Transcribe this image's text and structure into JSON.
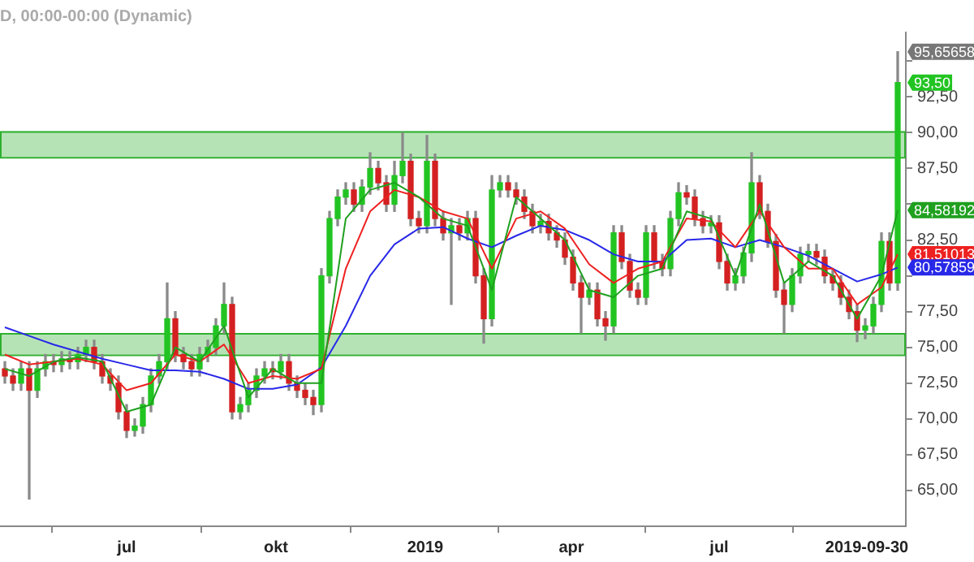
{
  "chart_data": {
    "type": "candlestick",
    "title": "D, 00:00-00:00 (Dynamic)",
    "colors": [
      "#d42020",
      "#d42020",
      "#22c422",
      "#d42020",
      "#22c422",
      "#22c422",
      "#d42020",
      "#22c422",
      "#d42020",
      "#22c422",
      "#22c422",
      "#d42020",
      "#d42020",
      "#d42020",
      "#d42020",
      "#d42020",
      "#22c422",
      "#22c422",
      "#22c422",
      "#22c422",
      "#22c422",
      "#d42020",
      "#d42020",
      "#d42020",
      "#22c422",
      "#22c422",
      "#22c422",
      "#22c422",
      "#d42020",
      "#22c422",
      "#22c422",
      "#22c422",
      "#22c422",
      "#d42020",
      "#22c422",
      "#d42020",
      "#d42020",
      "#d42020",
      "#d42020",
      "#22c422",
      "#22c422",
      "#22c422",
      "#22c422",
      "#d42020",
      "#22c422",
      "#22c422",
      "#d42020",
      "#d42020",
      "#22c422",
      "#22c422",
      "#d42020",
      "#d42020",
      "#22c422",
      "#d42020",
      "#d42020",
      "#22c422",
      "#d42020",
      "#22c422",
      "#d42020",
      "#d42020",
      "#22c422",
      "#22c422",
      "#d42020",
      "#d42020",
      "#d42020",
      "#d42020",
      "#22c422",
      "#d42020",
      "#d42020",
      "#d42020",
      "#d42020",
      "#d42020",
      "#22c422",
      "#d42020",
      "#d42020",
      "#22c422",
      "#d42020",
      "#d42020",
      "#d42020",
      "#22c422",
      "#d42020",
      "#d42020",
      "#22c422",
      "#22c422",
      "#d42020",
      "#d42020",
      "#d42020",
      "#22c422",
      "#d42020",
      "#d42020",
      "#22c422",
      "#22c422",
      "#22c422",
      "#d42020",
      "#d42020",
      "#d42020",
      "#d42020",
      "#22c422",
      "#22c422",
      "#22c422",
      "#d42020",
      "#d42020",
      "#d42020",
      "#d42020",
      "#d42020",
      "#d42020",
      "#22c422",
      "#22c422",
      "#22c422",
      "#d42020",
      "#22c422"
    ],
    "x": [
      "2018-04-17",
      "2018-04-22",
      "2018-04-27",
      "2018-05-02",
      "2018-05-07",
      "2018-05-12",
      "2018-05-17",
      "2018-05-22",
      "2018-05-27",
      "2018-06-01",
      "2018-06-06",
      "2018-06-11",
      "2018-06-16",
      "2018-06-21",
      "2018-06-26",
      "2018-07-01",
      "2018-07-06",
      "2018-07-11",
      "2018-07-16",
      "2018-07-21",
      "2018-07-26",
      "2018-07-31",
      "2018-08-05",
      "2018-08-10",
      "2018-08-15",
      "2018-08-20",
      "2018-08-25",
      "2018-08-30",
      "2018-09-04",
      "2018-09-09",
      "2018-09-14",
      "2018-09-19",
      "2018-09-24",
      "2018-09-29",
      "2018-10-04",
      "2018-10-09",
      "2018-10-14",
      "2018-10-19",
      "2018-10-24",
      "2018-10-29",
      "2018-11-03",
      "2018-11-08",
      "2018-11-13",
      "2018-11-18",
      "2018-11-23",
      "2018-11-28",
      "2018-12-03",
      "2018-12-08",
      "2018-12-13",
      "2018-12-18",
      "2018-12-23",
      "2018-12-28",
      "2019-01-02",
      "2019-01-07",
      "2019-01-12",
      "2019-01-17",
      "2019-01-22",
      "2019-01-27",
      "2019-02-01",
      "2019-02-06",
      "2019-02-11",
      "2019-02-16",
      "2019-02-21",
      "2019-02-26",
      "2019-03-03",
      "2019-03-08",
      "2019-03-13",
      "2019-03-18",
      "2019-03-23",
      "2019-03-28",
      "2019-04-02",
      "2019-04-07",
      "2019-04-12",
      "2019-04-17",
      "2019-04-22",
      "2019-04-27",
      "2019-05-02",
      "2019-05-07",
      "2019-05-12",
      "2019-05-17",
      "2019-05-22",
      "2019-05-27",
      "2019-06-01",
      "2019-06-06",
      "2019-06-11",
      "2019-06-16",
      "2019-06-21",
      "2019-06-26",
      "2019-07-01",
      "2019-07-06",
      "2019-07-11",
      "2019-07-16",
      "2019-07-21",
      "2019-07-26",
      "2019-07-31",
      "2019-08-05",
      "2019-08-10",
      "2019-08-15",
      "2019-08-20",
      "2019-08-25",
      "2019-08-30",
      "2019-09-04",
      "2019-09-09",
      "2019-09-14",
      "2019-09-19",
      "2019-09-24",
      "2019-09-29",
      "2019-10-04",
      "2019-10-09",
      "2019-10-14",
      "2019-10-19"
    ],
    "ohlc": [
      [
        73.5,
        74,
        72.5,
        73
      ],
      [
        73,
        73.5,
        72,
        72.5
      ],
      [
        72.5,
        74,
        72,
        73.5
      ],
      [
        73.5,
        74,
        64.4,
        72
      ],
      [
        72,
        74,
        71.5,
        73.5
      ],
      [
        73.5,
        74.5,
        73,
        74
      ],
      [
        74,
        74.5,
        73.3,
        73.8
      ],
      [
        73.8,
        74.7,
        73.3,
        74.2
      ],
      [
        74.2,
        74.7,
        73.5,
        74
      ],
      [
        74,
        75,
        73.5,
        74.5
      ],
      [
        74.5,
        75.5,
        74,
        75
      ],
      [
        75,
        75.5,
        73.5,
        74
      ],
      [
        74,
        74.5,
        72.5,
        73
      ],
      [
        73,
        73.5,
        72,
        72.5
      ],
      [
        72.5,
        73,
        70,
        70.5
      ],
      [
        70.5,
        71,
        68.7,
        69.2
      ],
      [
        69.2,
        70,
        68.8,
        69.5
      ],
      [
        69.5,
        71.5,
        69,
        71
      ],
      [
        71,
        73.5,
        70.5,
        73
      ],
      [
        73,
        74.5,
        72.5,
        74
      ],
      [
        74,
        79.5,
        73.5,
        77
      ],
      [
        77,
        77.5,
        74,
        74.5
      ],
      [
        74.5,
        75,
        73.5,
        74
      ],
      [
        74,
        74.5,
        73,
        73.5
      ],
      [
        73.5,
        75,
        73,
        74.5
      ],
      [
        74.5,
        75.5,
        74,
        75
      ],
      [
        75,
        77,
        74.5,
        76.5
      ],
      [
        76.5,
        79.5,
        76,
        78
      ],
      [
        78,
        78.5,
        70,
        70.5
      ],
      [
        70.5,
        71.5,
        70,
        71
      ],
      [
        71,
        72.5,
        70.5,
        72
      ],
      [
        72,
        73.5,
        71.5,
        73
      ],
      [
        73,
        74,
        72.5,
        73.5
      ],
      [
        73.5,
        74,
        72.8,
        73.3
      ],
      [
        73.3,
        74.5,
        72.8,
        74
      ],
      [
        74,
        74.5,
        72,
        72.5
      ],
      [
        72.5,
        73,
        71.5,
        72
      ],
      [
        72,
        72.5,
        71,
        71.5
      ],
      [
        71.5,
        72,
        70.3,
        71
      ],
      [
        71,
        80.5,
        70.5,
        80
      ],
      [
        80,
        84.5,
        79.5,
        84
      ],
      [
        84,
        86,
        83.5,
        85.5
      ],
      [
        85.5,
        86.5,
        85,
        86
      ],
      [
        86,
        86.5,
        84.5,
        85
      ],
      [
        85,
        86.7,
        84.5,
        86.2
      ],
      [
        86.2,
        88.6,
        85.7,
        87.5
      ],
      [
        87.5,
        88,
        86,
        86.5
      ],
      [
        86.5,
        87,
        84.5,
        85
      ],
      [
        85,
        88,
        84.5,
        87
      ],
      [
        87,
        90,
        86.5,
        88
      ],
      [
        88,
        88.5,
        83.5,
        84
      ],
      [
        84,
        84.5,
        83,
        83.5
      ],
      [
        83.5,
        89.8,
        83,
        88
      ],
      [
        88,
        88.5,
        83.5,
        84
      ],
      [
        84,
        84.5,
        82.5,
        83
      ],
      [
        83,
        84,
        78,
        83.5
      ],
      [
        83.5,
        84,
        82.5,
        83
      ],
      [
        83,
        84.5,
        82.5,
        84
      ],
      [
        84,
        84.5,
        79.5,
        80
      ],
      [
        80,
        80.5,
        75.3,
        77
      ],
      [
        77,
        87,
        76.5,
        86
      ],
      [
        86,
        87,
        85.5,
        86.5
      ],
      [
        86.5,
        87,
        85.5,
        86
      ],
      [
        86,
        86.5,
        85,
        85.5
      ],
      [
        85.5,
        86,
        84,
        84.5
      ],
      [
        84.5,
        85,
        83,
        83.5
      ],
      [
        83.5,
        84.3,
        83,
        83.8
      ],
      [
        83.8,
        84.3,
        82.5,
        83
      ],
      [
        83,
        83.5,
        82,
        82.5
      ],
      [
        82.5,
        83,
        80.8,
        81.3
      ],
      [
        81.3,
        81.8,
        79,
        79.5
      ],
      [
        79.5,
        80,
        76,
        78.5
      ],
      [
        78.5,
        79.5,
        78,
        79
      ],
      [
        79,
        79.5,
        76.5,
        77
      ],
      [
        77,
        77.5,
        75.5,
        76.5
      ],
      [
        76.5,
        83.5,
        76,
        83
      ],
      [
        83,
        83.5,
        80.5,
        81
      ],
      [
        81,
        81.5,
        78.5,
        79
      ],
      [
        79,
        79.5,
        78,
        78.5
      ],
      [
        78.5,
        83.5,
        78,
        83
      ],
      [
        83,
        83.5,
        80.5,
        81
      ],
      [
        81,
        81.5,
        80,
        80.5
      ],
      [
        80.5,
        84.5,
        80,
        84
      ],
      [
        84,
        86.5,
        83.5,
        85.8
      ],
      [
        85.8,
        86.3,
        85,
        85.5
      ],
      [
        85.5,
        86,
        83.5,
        84
      ],
      [
        84,
        84.5,
        83,
        83.5
      ],
      [
        83.5,
        84.2,
        83,
        83.7
      ],
      [
        83.7,
        84.2,
        80.5,
        81
      ],
      [
        81,
        81.5,
        79,
        79.5
      ],
      [
        79.5,
        80.5,
        79,
        80
      ],
      [
        80,
        82,
        79.5,
        81.6
      ],
      [
        81.6,
        88.6,
        81,
        86.5
      ],
      [
        86.5,
        87,
        84,
        84.5
      ],
      [
        84.5,
        85,
        82,
        82.4
      ],
      [
        82.4,
        82.9,
        78.5,
        79
      ],
      [
        79,
        79.5,
        76,
        78
      ],
      [
        78,
        80.5,
        77.5,
        80
      ],
      [
        80,
        82,
        79.5,
        81.5
      ],
      [
        81.5,
        82.2,
        81,
        81.7
      ],
      [
        81.7,
        82.2,
        80.8,
        81.3
      ],
      [
        81.3,
        81.8,
        79.5,
        80
      ],
      [
        80,
        80.5,
        79,
        79.5
      ],
      [
        79.5,
        80,
        78,
        78.5
      ],
      [
        78.5,
        79,
        77,
        77.5
      ],
      [
        77.5,
        78,
        75.4,
        76.2
      ],
      [
        76.2,
        77,
        75.6,
        76.5
      ],
      [
        76.5,
        78.5,
        76,
        78
      ],
      [
        78,
        83,
        77.5,
        82.4
      ],
      [
        82.4,
        83,
        79,
        79.5
      ],
      [
        79.5,
        95.65658,
        79,
        93.5
      ]
    ],
    "series": [
      {
        "type": "line",
        "color": "#1fa01f",
        "x": [
          "2018-04-17",
          "2018-05-02",
          "2018-05-17",
          "2018-06-01",
          "2018-06-16",
          "2018-07-01",
          "2018-07-16",
          "2018-07-31",
          "2018-08-15",
          "2018-08-30",
          "2018-09-14",
          "2018-09-29",
          "2018-10-14",
          "2018-10-29",
          "2018-11-13",
          "2018-11-28",
          "2018-12-13",
          "2018-12-28",
          "2019-01-12",
          "2019-01-27",
          "2019-02-11",
          "2019-02-26",
          "2019-03-13",
          "2019-03-28",
          "2019-04-12",
          "2019-04-27",
          "2019-05-12",
          "2019-05-27",
          "2019-06-11",
          "2019-06-26",
          "2019-07-11",
          "2019-07-26",
          "2019-08-10",
          "2019-08-25",
          "2019-09-09",
          "2019-09-24",
          "2019-10-09",
          "2019-10-19"
        ],
        "values": [
          73.5,
          73,
          74,
          74.3,
          74,
          70.5,
          71,
          75,
          74,
          76.5,
          71.5,
          73.5,
          72.5,
          72.5,
          84,
          86,
          86.5,
          85.5,
          84,
          83.5,
          79,
          85.5,
          84,
          82.5,
          79,
          78.5,
          80,
          80.5,
          84.5,
          84,
          80,
          85,
          79.5,
          81,
          80,
          77,
          80,
          84.58192
        ]
      },
      {
        "type": "line",
        "color": "#ee2020",
        "x": [
          "2018-04-17",
          "2018-05-02",
          "2018-05-17",
          "2018-06-01",
          "2018-06-16",
          "2018-07-01",
          "2018-07-16",
          "2018-07-31",
          "2018-08-15",
          "2018-08-30",
          "2018-09-14",
          "2018-09-29",
          "2018-10-14",
          "2018-10-29",
          "2018-11-13",
          "2018-11-28",
          "2018-12-13",
          "2018-12-28",
          "2019-01-12",
          "2019-01-27",
          "2019-02-11",
          "2019-02-26",
          "2019-03-13",
          "2019-03-28",
          "2019-04-12",
          "2019-04-27",
          "2019-05-12",
          "2019-05-27",
          "2019-06-11",
          "2019-06-26",
          "2019-07-11",
          "2019-07-26",
          "2019-08-10",
          "2019-08-25",
          "2019-09-09",
          "2019-09-24",
          "2019-10-09",
          "2019-10-19"
        ],
        "values": [
          74.5,
          73.8,
          74,
          74.2,
          73.8,
          72,
          72.5,
          74.5,
          74,
          75.2,
          72.5,
          73,
          72.8,
          73.5,
          80.5,
          84.5,
          86,
          85.5,
          84.5,
          84,
          80.5,
          84,
          84.5,
          83.3,
          80.8,
          79.5,
          80.5,
          81,
          84,
          83.8,
          82,
          84.5,
          82,
          80.5,
          80.5,
          78,
          79.2,
          81.51013
        ]
      },
      {
        "type": "line",
        "color": "#2828e8",
        "x": [
          "2018-04-17",
          "2018-05-02",
          "2018-05-17",
          "2018-06-01",
          "2018-06-16",
          "2018-07-01",
          "2018-07-16",
          "2018-07-31",
          "2018-08-15",
          "2018-08-30",
          "2018-09-14",
          "2018-09-29",
          "2018-10-14",
          "2018-10-29",
          "2018-11-13",
          "2018-11-28",
          "2018-12-13",
          "2018-12-28",
          "2019-01-12",
          "2019-01-27",
          "2019-02-11",
          "2019-02-26",
          "2019-03-13",
          "2019-03-28",
          "2019-04-12",
          "2019-04-27",
          "2019-05-12",
          "2019-05-27",
          "2019-06-11",
          "2019-06-26",
          "2019-07-11",
          "2019-07-26",
          "2019-08-10",
          "2019-08-25",
          "2019-09-09",
          "2019-09-24",
          "2019-10-09",
          "2019-10-19"
        ],
        "values": [
          76.4,
          75.8,
          75.2,
          74.7,
          74.2,
          73.8,
          73.4,
          73.4,
          73.3,
          72.8,
          72.1,
          72.1,
          72.4,
          73.6,
          76.5,
          80,
          82.2,
          83.3,
          83.4,
          82.6,
          82,
          82.8,
          83.5,
          83.2,
          82.5,
          81.5,
          81,
          81,
          82.5,
          82.6,
          82,
          82.5,
          82,
          81.4,
          80.5,
          79.6,
          80.1,
          80.58
        ]
      }
    ],
    "xlim": [
      "2018-04-14",
      "2019-10-24"
    ],
    "xticks": [
      {
        "value": "2018-07-01",
        "label": "jul"
      },
      {
        "value": "2018-10-01",
        "label": "okt"
      },
      {
        "value": "2019-01-01",
        "label": "2019"
      },
      {
        "value": "2019-04-01",
        "label": "apr"
      },
      {
        "value": "2019-07-01",
        "label": "jul"
      },
      {
        "value": "2019-09-30",
        "label": "2019-09-30"
      }
    ],
    "ylim": [
      62.5,
      97
    ],
    "yticks": [
      {
        "value": 65,
        "label": "65,00"
      },
      {
        "value": 67.5,
        "label": "67,50"
      },
      {
        "value": 70,
        "label": "70,00"
      },
      {
        "value": 72.5,
        "label": "72,50"
      },
      {
        "value": 75,
        "label": "75,00"
      },
      {
        "value": 77.5,
        "label": "77,50"
      },
      {
        "value": 80,
        "label": null
      },
      {
        "value": 82.5,
        "label": "82,50"
      },
      {
        "value": 85,
        "label": null
      },
      {
        "value": 87.5,
        "label": "87,50"
      },
      {
        "value": 90,
        "label": "90,00"
      },
      {
        "value": 92.5,
        "label": "92,50"
      },
      {
        "value": 95,
        "label": null
      }
    ],
    "bands": [
      {
        "axis": "y",
        "from": 88.3,
        "to": 90.1,
        "color": "#2fb02f"
      },
      {
        "axis": "y",
        "from": 74.5,
        "to": 76,
        "color": "#2fb02f"
      }
    ],
    "annotations": [
      {
        "text": "95,65658",
        "x": "2019-10-19",
        "y": 95.65658
      },
      {
        "text": "93,50",
        "x": "2019-10-19",
        "y": 93.5
      },
      {
        "text": "84,58192",
        "x": "2019-10-19",
        "y": 84.58192
      },
      {
        "text": "81,51013",
        "x": "2019-10-19",
        "y": 81.51013
      },
      {
        "text": "80,57859",
        "x": "2019-10-19",
        "y": 80.58
      }
    ],
    "grid": false,
    "legend": false,
    "marker": "none",
    "line_style": "solid"
  }
}
